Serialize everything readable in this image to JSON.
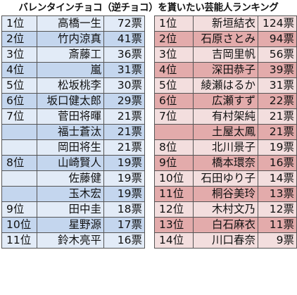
{
  "title": "バレンタインチョコ（逆チョコ）を貰いたい芸能人ランキング",
  "colors": {
    "left_dark": "#c4d6ee",
    "left_light": "#e2ebf7",
    "right_dark": "#e3abab",
    "right_light": "#f3dede"
  },
  "left_rows": [
    {
      "rank": "1位",
      "name": "高橋一生",
      "votes": "72票",
      "shade": "light"
    },
    {
      "rank": "2位",
      "name": "竹内涼真",
      "votes": "41票",
      "shade": "dark"
    },
    {
      "rank": "3位",
      "name": "斎藤工",
      "votes": "36票",
      "shade": "light"
    },
    {
      "rank": "4位",
      "name": "嵐",
      "votes": "31票",
      "shade": "dark"
    },
    {
      "rank": "5位",
      "name": "松坂桃李",
      "votes": "30票",
      "shade": "light"
    },
    {
      "rank": "6位",
      "name": "坂口健太郎",
      "votes": "29票",
      "shade": "dark"
    },
    {
      "rank": "7位",
      "name": "菅田将暉",
      "votes": "21票",
      "shade": "light"
    },
    {
      "rank": "",
      "name": "福士蒼汰",
      "votes": "21票",
      "shade": "dark"
    },
    {
      "rank": "",
      "name": "岡田将生",
      "votes": "21票",
      "shade": "light"
    },
    {
      "rank": "8位",
      "name": "山崎賢人",
      "votes": "19票",
      "shade": "dark"
    },
    {
      "rank": "",
      "name": "佐藤健",
      "votes": "19票",
      "shade": "light"
    },
    {
      "rank": "",
      "name": "玉木宏",
      "votes": "19票",
      "shade": "dark"
    },
    {
      "rank": "9位",
      "name": "田中圭",
      "votes": "18票",
      "shade": "light"
    },
    {
      "rank": "10位",
      "name": "星野源",
      "votes": "17票",
      "shade": "dark"
    },
    {
      "rank": "11位",
      "name": "鈴木亮平",
      "votes": "16票",
      "shade": "light"
    }
  ],
  "right_rows": [
    {
      "rank": "1位",
      "name": "新垣結衣",
      "votes": "124票",
      "shade": "light"
    },
    {
      "rank": "2位",
      "name": "石原さとみ",
      "votes": "94票",
      "shade": "dark"
    },
    {
      "rank": "3位",
      "name": "吉岡里帆",
      "votes": "56票",
      "shade": "light"
    },
    {
      "rank": "4位",
      "name": "深田恭子",
      "votes": "39票",
      "shade": "dark"
    },
    {
      "rank": "5位",
      "name": "綾瀬はるか",
      "votes": "31票",
      "shade": "light"
    },
    {
      "rank": "6位",
      "name": "広瀬すず",
      "votes": "22票",
      "shade": "dark"
    },
    {
      "rank": "7位",
      "name": "有村架純",
      "votes": "21票",
      "shade": "light"
    },
    {
      "rank": "",
      "name": "土屋太鳳",
      "votes": "21票",
      "shade": "dark"
    },
    {
      "rank": "8位",
      "name": "北川景子",
      "votes": "19票",
      "shade": "light"
    },
    {
      "rank": "9位",
      "name": "橋本環奈",
      "votes": "16票",
      "shade": "dark"
    },
    {
      "rank": "10位",
      "name": "石田ゆり子",
      "votes": "14票",
      "shade": "light"
    },
    {
      "rank": "11位",
      "name": "桐谷美玲",
      "votes": "13票",
      "shade": "dark"
    },
    {
      "rank": "12位",
      "name": "木村文乃",
      "votes": "12票",
      "shade": "light"
    },
    {
      "rank": "13位",
      "name": "白石麻衣",
      "votes": "11票",
      "shade": "dark"
    },
    {
      "rank": "14位",
      "name": "川口春奈",
      "votes": "9票",
      "shade": "light"
    }
  ]
}
